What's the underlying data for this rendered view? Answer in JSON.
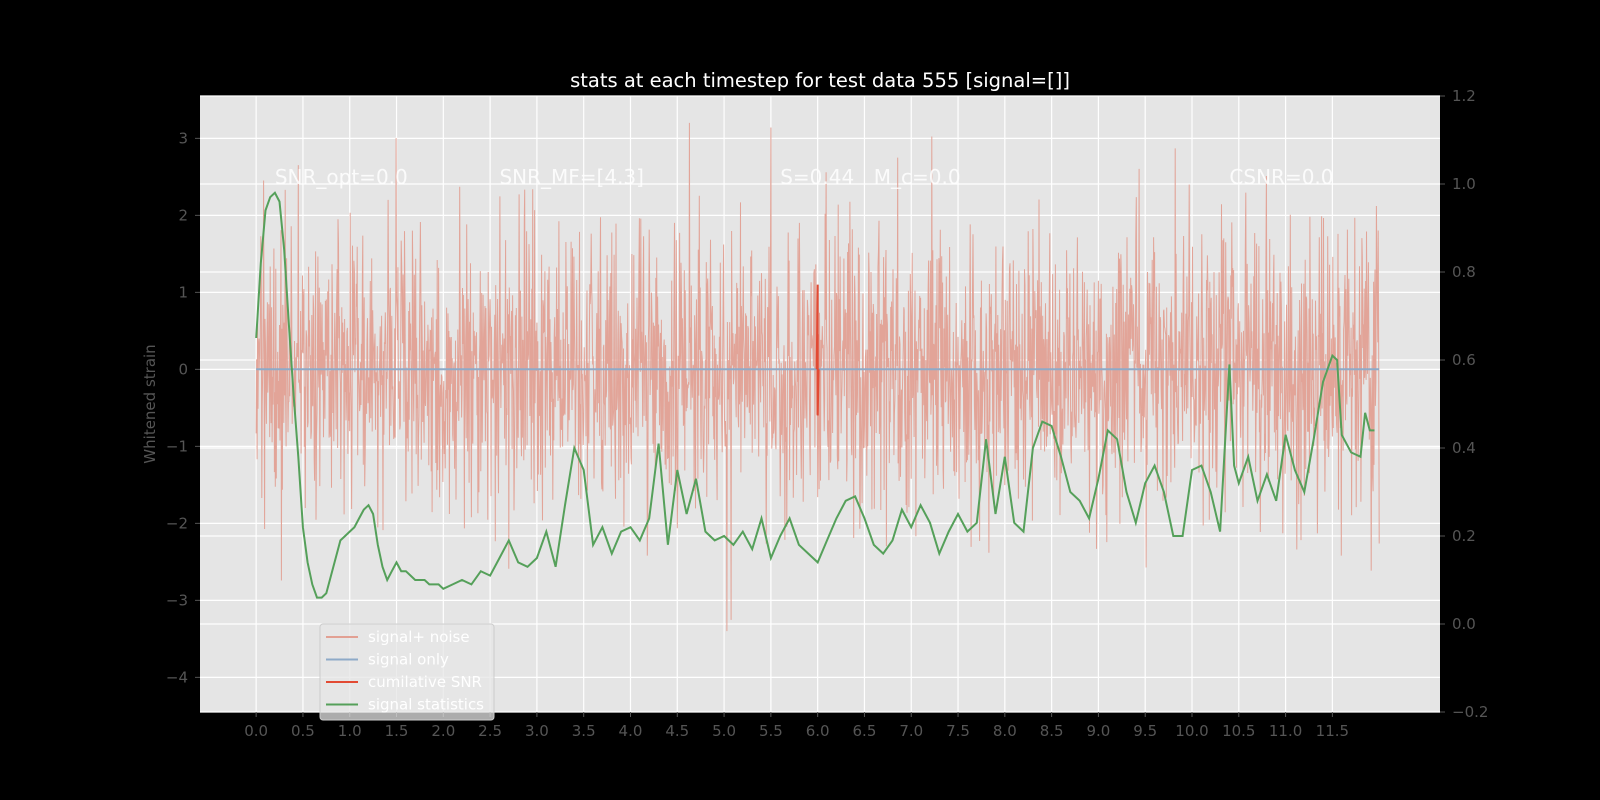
{
  "chart_data": {
    "type": "line",
    "title": "stats at each timestep for test data 555 [signal=[]]",
    "xlabel": "",
    "ylabel": "Whitened strain",
    "y2label": "",
    "xlim": [
      -0.6,
      12.65
    ],
    "ylim": [
      -4.45,
      3.55
    ],
    "y2lim": [
      -0.2,
      1.2
    ],
    "x_ticks": [
      "0.0",
      "0.5",
      "1.0",
      "1.5",
      "2.0",
      "2.5",
      "3.0",
      "3.5",
      "4.0",
      "4.5",
      "5.0",
      "5.5",
      "6.0",
      "6.5",
      "7.0",
      "7.5",
      "8.0",
      "8.5",
      "9.0",
      "9.5",
      "10.0",
      "10.5",
      "11.0",
      "11.5"
    ],
    "y_ticks": [
      "3",
      "2",
      "1",
      "0",
      "−1",
      "−2",
      "−3",
      "−4"
    ],
    "y2_ticks": [
      "1.2",
      "1.0",
      "0.8",
      "0.6",
      "0.4",
      "0.2",
      "0.0",
      "−0.2"
    ],
    "grid": true,
    "background": "#e5e5e5",
    "figure_background": "#000000",
    "annotations": [
      {
        "text": "SNR_opt=0.0",
        "x": 0.2,
        "y": 2.5
      },
      {
        "text": "SNR_MF=[4.3]",
        "x": 2.6,
        "y": 2.5
      },
      {
        "text": "S=0.44",
        "x": 5.6,
        "y": 2.5
      },
      {
        "text": "M_c=0.0",
        "x": 6.6,
        "y": 2.5
      },
      {
        "text": "CSNR=0.0",
        "x": 10.4,
        "y": 2.5
      }
    ],
    "series": [
      {
        "name": "signal+ noise",
        "color": "#e2a093",
        "axis": "left",
        "kind": "noise",
        "x_range": [
          0.0,
          12.0
        ],
        "std": 0.9,
        "min": -3.4,
        "max": 3.2
      },
      {
        "name": "signal only",
        "color": "#8eaac8",
        "axis": "left",
        "x_range": [
          0.0,
          12.0
        ],
        "constant": 0.0
      },
      {
        "name": "cumilative SNR",
        "color": "#e24a33",
        "axis": "left",
        "x": [
          5.99,
          6.0,
          6.0,
          6.01
        ],
        "y": [
          0.0,
          1.1,
          -0.6,
          0.0
        ]
      },
      {
        "name": "signal statistics",
        "color": "#55a05a",
        "axis": "right",
        "x": [
          0.0,
          0.05,
          0.1,
          0.15,
          0.2,
          0.25,
          0.3,
          0.35,
          0.4,
          0.45,
          0.5,
          0.55,
          0.6,
          0.65,
          0.7,
          0.75,
          0.8,
          0.85,
          0.9,
          0.95,
          1.0,
          1.05,
          1.1,
          1.15,
          1.2,
          1.25,
          1.3,
          1.35,
          1.4,
          1.45,
          1.5,
          1.55,
          1.6,
          1.65,
          1.7,
          1.75,
          1.8,
          1.85,
          1.9,
          1.95,
          2.0,
          2.1,
          2.2,
          2.3,
          2.4,
          2.5,
          2.6,
          2.7,
          2.8,
          2.9,
          3.0,
          3.1,
          3.2,
          3.3,
          3.4,
          3.5,
          3.6,
          3.7,
          3.8,
          3.9,
          4.0,
          4.1,
          4.2,
          4.3,
          4.4,
          4.5,
          4.6,
          4.7,
          4.8,
          4.9,
          5.0,
          5.1,
          5.2,
          5.3,
          5.4,
          5.5,
          5.6,
          5.7,
          5.8,
          5.9,
          6.0,
          6.1,
          6.2,
          6.3,
          6.4,
          6.5,
          6.6,
          6.7,
          6.8,
          6.9,
          7.0,
          7.1,
          7.2,
          7.3,
          7.4,
          7.5,
          7.6,
          7.7,
          7.8,
          7.9,
          8.0,
          8.1,
          8.2,
          8.3,
          8.4,
          8.5,
          8.6,
          8.7,
          8.8,
          8.9,
          9.0,
          9.1,
          9.2,
          9.3,
          9.4,
          9.5,
          9.6,
          9.7,
          9.8,
          9.9,
          10.0,
          10.1,
          10.2,
          10.3,
          10.4,
          10.45,
          10.5,
          10.6,
          10.7,
          10.8,
          10.9,
          11.0,
          11.1,
          11.2,
          11.3,
          11.4,
          11.5,
          11.55,
          11.6,
          11.7,
          11.8,
          11.85,
          11.9,
          11.95
        ],
        "y": [
          0.65,
          0.82,
          0.94,
          0.97,
          0.98,
          0.96,
          0.85,
          0.68,
          0.52,
          0.38,
          0.22,
          0.14,
          0.09,
          0.06,
          0.06,
          0.07,
          0.11,
          0.15,
          0.19,
          0.2,
          0.21,
          0.22,
          0.24,
          0.26,
          0.27,
          0.25,
          0.18,
          0.13,
          0.1,
          0.12,
          0.14,
          0.12,
          0.12,
          0.11,
          0.1,
          0.1,
          0.1,
          0.09,
          0.09,
          0.09,
          0.08,
          0.09,
          0.1,
          0.09,
          0.12,
          0.11,
          0.15,
          0.19,
          0.14,
          0.13,
          0.15,
          0.21,
          0.13,
          0.27,
          0.4,
          0.35,
          0.18,
          0.22,
          0.16,
          0.21,
          0.22,
          0.19,
          0.24,
          0.41,
          0.18,
          0.35,
          0.25,
          0.33,
          0.21,
          0.19,
          0.2,
          0.18,
          0.21,
          0.17,
          0.24,
          0.15,
          0.2,
          0.24,
          0.18,
          0.16,
          0.14,
          0.19,
          0.24,
          0.28,
          0.29,
          0.24,
          0.18,
          0.16,
          0.19,
          0.26,
          0.22,
          0.27,
          0.23,
          0.16,
          0.21,
          0.25,
          0.21,
          0.23,
          0.42,
          0.25,
          0.38,
          0.23,
          0.21,
          0.4,
          0.46,
          0.45,
          0.38,
          0.3,
          0.28,
          0.24,
          0.33,
          0.44,
          0.42,
          0.3,
          0.23,
          0.32,
          0.36,
          0.3,
          0.2,
          0.2,
          0.35,
          0.36,
          0.3,
          0.21,
          0.59,
          0.36,
          0.32,
          0.38,
          0.28,
          0.34,
          0.28,
          0.43,
          0.35,
          0.3,
          0.42,
          0.55,
          0.61,
          0.6,
          0.43,
          0.39,
          0.38,
          0.48,
          0.44,
          0.44
        ]
      }
    ]
  }
}
